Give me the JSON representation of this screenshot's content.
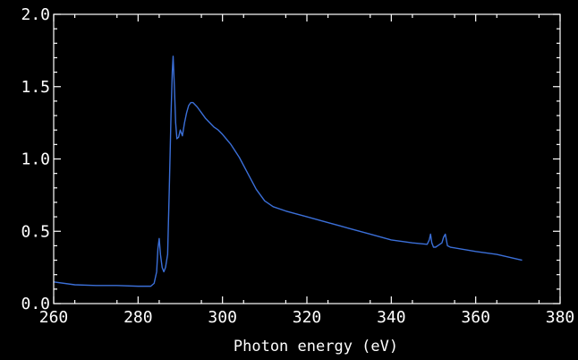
{
  "chart_data": {
    "type": "line",
    "title": "",
    "xlabel": "Photon energy (eV)",
    "ylabel": "",
    "xlim": [
      260,
      380
    ],
    "ylim": [
      0.0,
      2.0
    ],
    "x_ticks": [
      260,
      280,
      300,
      320,
      340,
      360,
      380
    ],
    "x_tick_labels": [
      "260",
      "280",
      "300",
      "320",
      "340",
      "360",
      "380"
    ],
    "y_ticks": [
      0.0,
      0.5,
      1.0,
      1.5,
      2.0
    ],
    "y_tick_labels": [
      "0.0",
      "0.5",
      "1.0",
      "1.5",
      "2.0"
    ],
    "grid": false,
    "background_color": "#000000",
    "axis_color": "#ffffff",
    "series": [
      {
        "color": "#3b6fd8",
        "x": [
          260,
          265,
          270,
          275,
          280,
          282,
          283,
          283.8,
          284.4,
          284.7,
          285.0,
          285.3,
          285.7,
          286.1,
          286.5,
          287.0,
          287.4,
          287.8,
          288.1,
          288.3,
          288.6,
          288.9,
          289.2,
          289.6,
          290.0,
          290.5,
          291.0,
          291.5,
          292.0,
          292.5,
          293.0,
          294.0,
          295.0,
          296.0,
          297.0,
          298.0,
          299.0,
          300.0,
          302.0,
          304.0,
          306.0,
          308.0,
          310.0,
          312.0,
          315.0,
          320.0,
          325.0,
          330.0,
          335.0,
          340.0,
          345.0,
          348.5,
          349.0,
          349.3,
          349.6,
          350.0,
          350.5,
          351.0,
          351.5,
          352.0,
          352.4,
          352.8,
          353.3,
          354.0,
          360.0,
          365.0,
          371.0
        ],
        "y": [
          0.15,
          0.13,
          0.125,
          0.125,
          0.12,
          0.12,
          0.12,
          0.14,
          0.22,
          0.38,
          0.45,
          0.34,
          0.25,
          0.22,
          0.25,
          0.34,
          0.8,
          1.3,
          1.6,
          1.71,
          1.5,
          1.25,
          1.14,
          1.15,
          1.2,
          1.16,
          1.25,
          1.32,
          1.37,
          1.39,
          1.39,
          1.36,
          1.32,
          1.28,
          1.25,
          1.22,
          1.2,
          1.17,
          1.1,
          1.01,
          0.9,
          0.79,
          0.71,
          0.67,
          0.64,
          0.6,
          0.56,
          0.52,
          0.48,
          0.44,
          0.42,
          0.41,
          0.44,
          0.48,
          0.42,
          0.39,
          0.39,
          0.4,
          0.41,
          0.42,
          0.46,
          0.48,
          0.4,
          0.39,
          0.36,
          0.34,
          0.3
        ]
      }
    ]
  }
}
